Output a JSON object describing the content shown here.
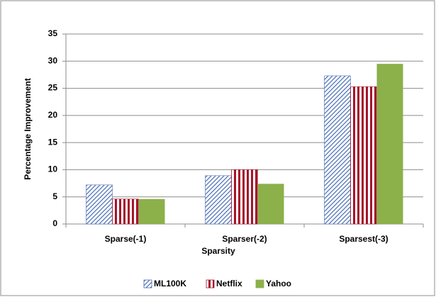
{
  "chart_data": {
    "type": "bar",
    "xlabel": "Sparsity",
    "ylabel": "Percentage Improvement",
    "categories": [
      "Sparse(-1)",
      "Sparser(-2)",
      "Sparsest(-3)"
    ],
    "series": [
      {
        "name": "ML100K",
        "color": "#4a6fb5",
        "pattern": "diagonal",
        "values": [
          7.2,
          8.9,
          27.3
        ]
      },
      {
        "name": "Netflix",
        "color": "#a3142a",
        "pattern": "vertical",
        "values": [
          4.6,
          10.0,
          25.3
        ]
      },
      {
        "name": "Yahoo",
        "color": "#8cb04a",
        "pattern": "solid",
        "values": [
          4.6,
          7.4,
          29.5
        ]
      }
    ],
    "ylim": [
      0,
      35
    ],
    "yticks": [
      0,
      5,
      10,
      15,
      20,
      25,
      30,
      35
    ],
    "grid": true,
    "legend": "bottom"
  }
}
